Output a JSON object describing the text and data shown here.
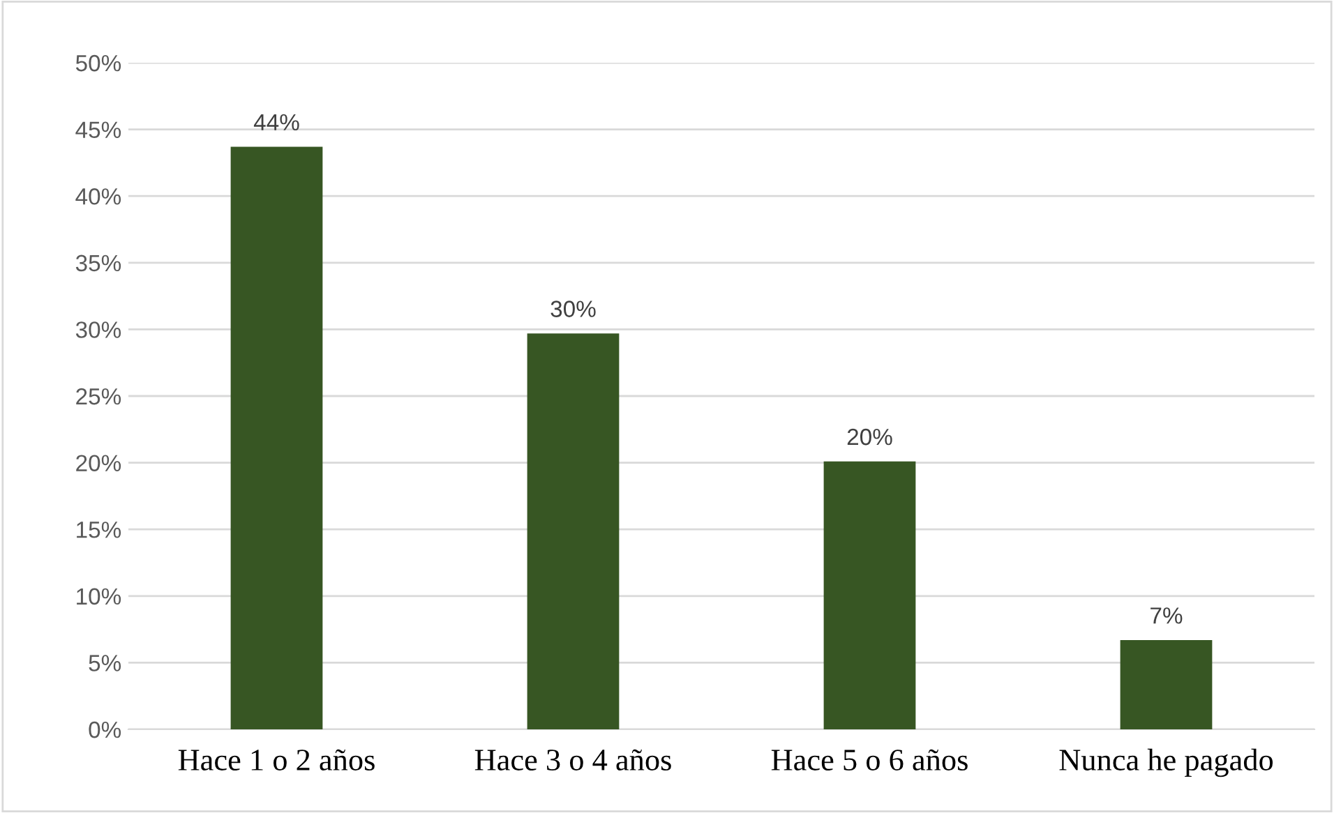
{
  "chart_data": {
    "type": "bar",
    "categories": [
      "Hace 1 o 2 años",
      "Hace 3 o 4 años",
      "Hace 5 o 6 años",
      "Nunca he pagado"
    ],
    "values": [
      43.7,
      29.7,
      20.1,
      6.7
    ],
    "value_labels": [
      "44%",
      "30%",
      "20%",
      "7%"
    ],
    "color": "#375623",
    "ylim": [
      0,
      50
    ],
    "yticks": [
      {
        "value": 0,
        "label": "0%"
      },
      {
        "value": 5,
        "label": "5%"
      },
      {
        "value": 10,
        "label": "10%"
      },
      {
        "value": 15,
        "label": "15%"
      },
      {
        "value": 20,
        "label": "20%"
      },
      {
        "value": 25,
        "label": "25%"
      },
      {
        "value": 30,
        "label": "30%"
      },
      {
        "value": 35,
        "label": "35%"
      },
      {
        "value": 40,
        "label": "40%"
      },
      {
        "value": 45,
        "label": "45%"
      },
      {
        "value": 50,
        "label": "50%"
      }
    ],
    "grid": "y",
    "legend": false
  }
}
